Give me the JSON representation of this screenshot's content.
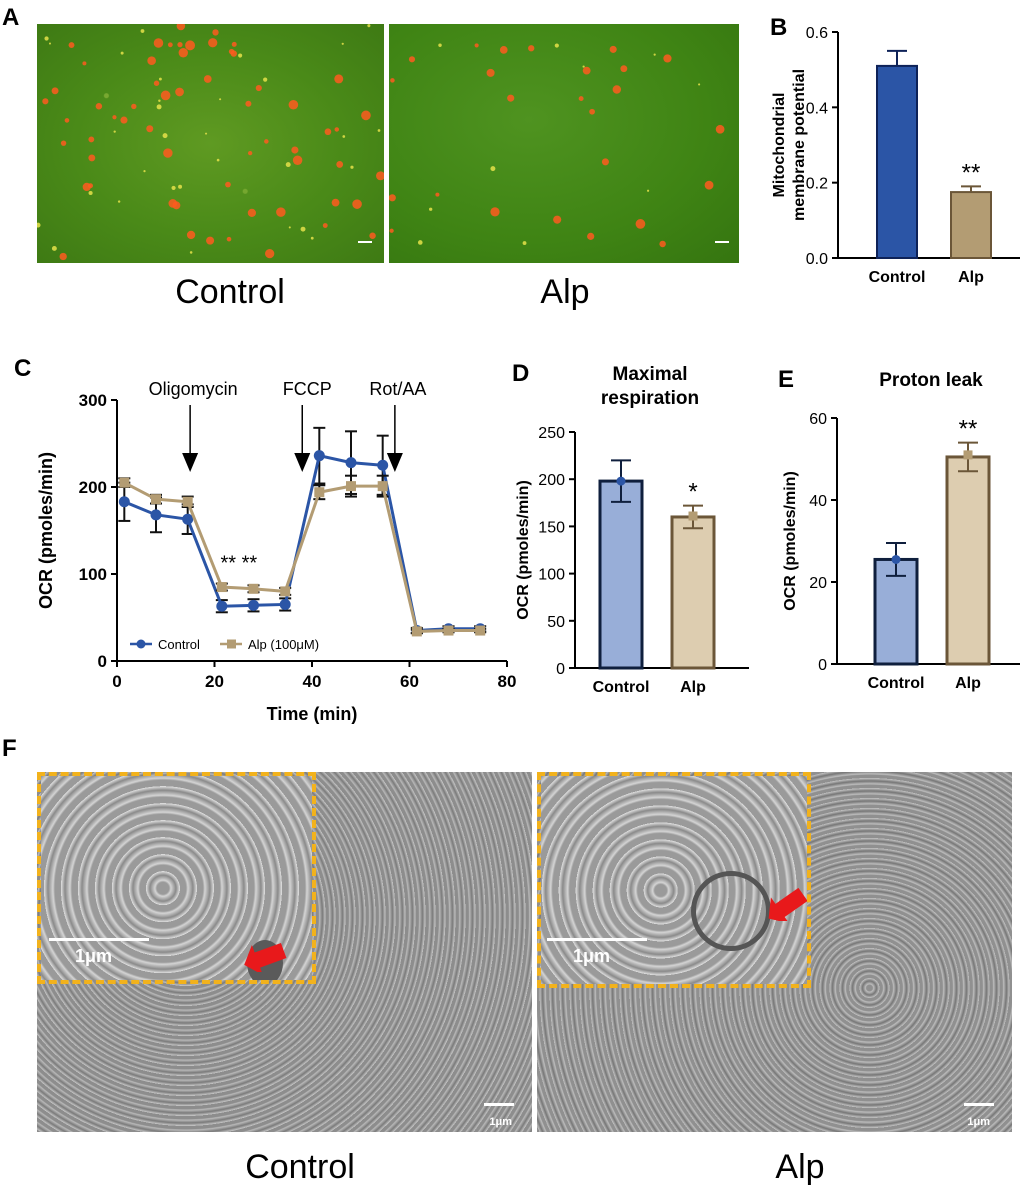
{
  "panels": {
    "A": {
      "label": "A",
      "captions": [
        "Control",
        "Alp"
      ]
    },
    "B": {
      "label": "B",
      "significance": "**"
    },
    "C": {
      "label": "C",
      "annotations": [
        "Oligomycin",
        "FCCP",
        "Rot/AA"
      ],
      "significance": "** **"
    },
    "D": {
      "label": "D",
      "significance": "*"
    },
    "E": {
      "label": "E",
      "significance": "**"
    },
    "F": {
      "label": "F",
      "inset_scale": "1μm",
      "scale": "1μm",
      "captions": [
        "Control",
        "Alp"
      ]
    }
  },
  "colors": {
    "control_blue": "#2b55a6",
    "alp_tan": "#b39c73",
    "control_light": "#98aed8",
    "alp_light": "#ddcdb0",
    "dark_navy": "#0f1f3d",
    "dark_brown": "#6b5638",
    "inset_border": "#f2b21c",
    "arrow_red": "#e8191b"
  },
  "chart_data": [
    {
      "id": "B",
      "type": "bar",
      "title": "",
      "ylabel": "Mitochondrial membrane potential",
      "categories": [
        "Control",
        "Alp"
      ],
      "values": [
        0.51,
        0.175
      ],
      "errors": [
        0.04,
        0.015
      ],
      "ylim": [
        0,
        0.6
      ],
      "yticks": [
        "0.0",
        "0.2",
        "0.4",
        "0.6"
      ]
    },
    {
      "id": "C",
      "type": "line",
      "title": "",
      "xlabel": "Time (min)",
      "ylabel": "OCR (pmoles/min)",
      "xlim": [
        0,
        80
      ],
      "ylim": [
        0,
        300
      ],
      "xticks": [
        "0",
        "20",
        "40",
        "60",
        "80"
      ],
      "yticks": [
        "0",
        "100",
        "200",
        "300"
      ],
      "legend_position": "bottom-left",
      "injections": [
        {
          "label": "Oligomycin",
          "x": 15
        },
        {
          "label": "FCCP",
          "x": 38
        },
        {
          "label": "Rot/AA",
          "x": 57
        }
      ],
      "series": [
        {
          "name": "Control",
          "x": [
            1.5,
            8,
            14.5,
            21.5,
            28,
            34.5,
            41.5,
            48,
            54.5,
            61.5,
            68,
            74.5
          ],
          "values": [
            183,
            168,
            163,
            63,
            64,
            65,
            236,
            228,
            225,
            35,
            37,
            37
          ],
          "errors": [
            22,
            20,
            17,
            7,
            7,
            7,
            32,
            36,
            34,
            3,
            3,
            3
          ]
        },
        {
          "name": "Alp (100μM)",
          "x": [
            1.5,
            8,
            14.5,
            21.5,
            28,
            34.5,
            41.5,
            48,
            54.5,
            61.5,
            68,
            74.5
          ],
          "values": [
            205,
            186,
            183,
            85,
            83,
            80,
            194,
            201,
            201,
            34,
            35,
            35
          ],
          "errors": [
            5,
            5,
            6,
            4,
            4,
            4,
            8,
            12,
            12,
            2,
            2,
            2
          ]
        }
      ]
    },
    {
      "id": "D",
      "type": "bar",
      "title": "Maximal respiration",
      "ylabel": "OCR (pmoles/min)",
      "categories": [
        "Control",
        "Alp"
      ],
      "values": [
        198,
        160
      ],
      "errors": [
        22,
        12
      ],
      "points": [
        198,
        161
      ],
      "ylim": [
        0,
        250
      ],
      "yticks": [
        "0",
        "50",
        "100",
        "150",
        "200",
        "250"
      ]
    },
    {
      "id": "E",
      "type": "bar",
      "title": "Proton leak",
      "ylabel": "OCR (pmoles/min)",
      "categories": [
        "Control",
        "Alp"
      ],
      "values": [
        25.5,
        50.5
      ],
      "errors": [
        4,
        3.5
      ],
      "points": [
        25.5,
        51
      ],
      "ylim": [
        0,
        60
      ],
      "yticks": [
        "0",
        "20",
        "40",
        "60"
      ]
    }
  ]
}
